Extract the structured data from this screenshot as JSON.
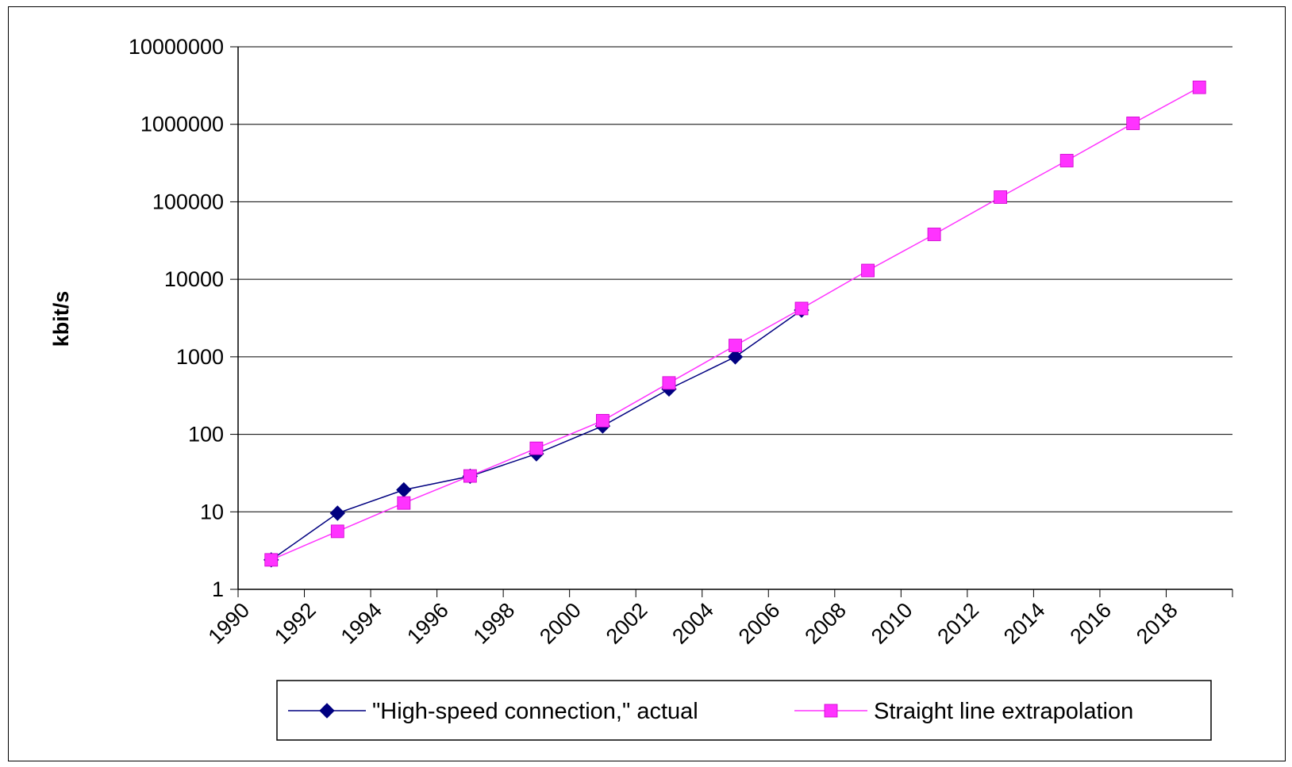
{
  "chart_data": {
    "type": "line",
    "title": "",
    "xlabel": "",
    "ylabel": "kbit/s",
    "yscale": "log",
    "ylim": [
      1,
      10000000
    ],
    "xlim": [
      1990,
      2020
    ],
    "x_ticks": [
      1990,
      1992,
      1994,
      1996,
      1998,
      2000,
      2002,
      2004,
      2006,
      2008,
      2010,
      2012,
      2014,
      2016,
      2018
    ],
    "y_ticks": [
      1,
      10,
      100,
      1000,
      10000,
      100000,
      1000000,
      10000000
    ],
    "grid": "horizontal",
    "legend_position": "bottom",
    "series": [
      {
        "name": "\"High-speed connection,\" actual",
        "color": "#000080",
        "marker": "diamond",
        "x": [
          1991,
          1993,
          1995,
          1997,
          1999,
          2001,
          2003,
          2005,
          2007
        ],
        "y": [
          2.4,
          9.6,
          19.2,
          28.8,
          56,
          128,
          384,
          1000,
          4000
        ]
      },
      {
        "name": "Straight line extrapolation",
        "color": "#FF33FF",
        "marker": "square",
        "x": [
          1991,
          1993,
          1995,
          1997,
          1999,
          2001,
          2003,
          2005,
          2007,
          2009,
          2011,
          2013,
          2015,
          2017,
          2019
        ],
        "y": [
          2.4,
          5.6,
          13,
          29,
          66,
          150,
          460,
          1400,
          4200,
          13000,
          38000,
          115000,
          340000,
          1030000,
          3000000
        ]
      }
    ]
  }
}
